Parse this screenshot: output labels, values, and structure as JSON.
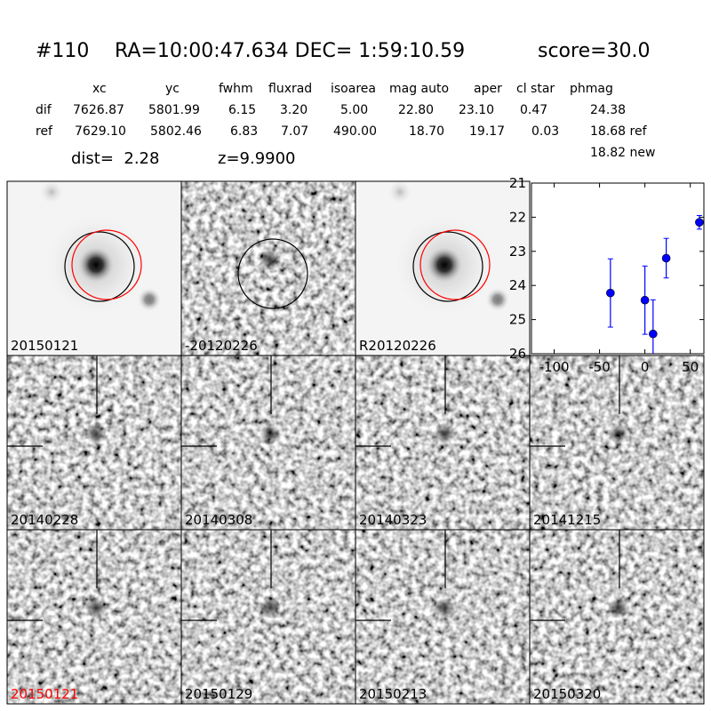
{
  "header": {
    "title": [
      "#110",
      "RA=10:00:47.634 DEC= 1:59:10.59",
      "score=30.0"
    ]
  },
  "table": {
    "header": [
      "xc",
      "yc",
      "fwhm",
      "fluxrad",
      "isoarea",
      "mag auto",
      "aper",
      "cl star",
      "phmag"
    ],
    "rows": [
      [
        "dif",
        "7626.87",
        "5801.99",
        "6.15",
        "3.20",
        "5.00",
        "22.80",
        "23.10",
        "0.47",
        "24.38"
      ],
      [
        "ref",
        "7629.10",
        "5802.46",
        "6.83",
        "7.07",
        "490.00",
        "18.70",
        "19.17",
        "0.03",
        "18.68 ref"
      ]
    ],
    "extra": "18.82 new"
  },
  "dist": "dist=  2.28",
  "z": "z=9.9900",
  "panels": [
    {
      "label": "20150121",
      "color": "#000000"
    },
    {
      "label": "-20120226",
      "color": "#000000"
    },
    {
      "label": "R20120226",
      "color": "#000000"
    },
    {
      "label": "20140228",
      "color": "#000000"
    },
    {
      "label": "20140308",
      "color": "#000000"
    },
    {
      "label": "20140323",
      "color": "#000000"
    },
    {
      "label": "20141215",
      "color": "#000000"
    },
    {
      "label": "20150121",
      "color": "#ff0000"
    },
    {
      "label": "20150129",
      "color": "#000000"
    },
    {
      "label": "20150213",
      "color": "#000000"
    },
    {
      "label": "20150320",
      "color": "#000000"
    }
  ],
  "chart_data": {
    "type": "scatter",
    "color": "#0000ff",
    "x": [
      -38,
      0,
      9,
      23.5,
      60
    ],
    "values": [
      24.22,
      24.43,
      25.42,
      23.2,
      22.15
    ],
    "errors": [
      1.0,
      1.0,
      1.0,
      0.58,
      0.2
    ],
    "xlim": [
      -125,
      65
    ],
    "ylim": [
      26,
      21
    ],
    "xticks": [
      -100,
      -50,
      0,
      50
    ],
    "yticks": [
      21,
      22,
      23,
      24,
      25,
      26
    ]
  }
}
